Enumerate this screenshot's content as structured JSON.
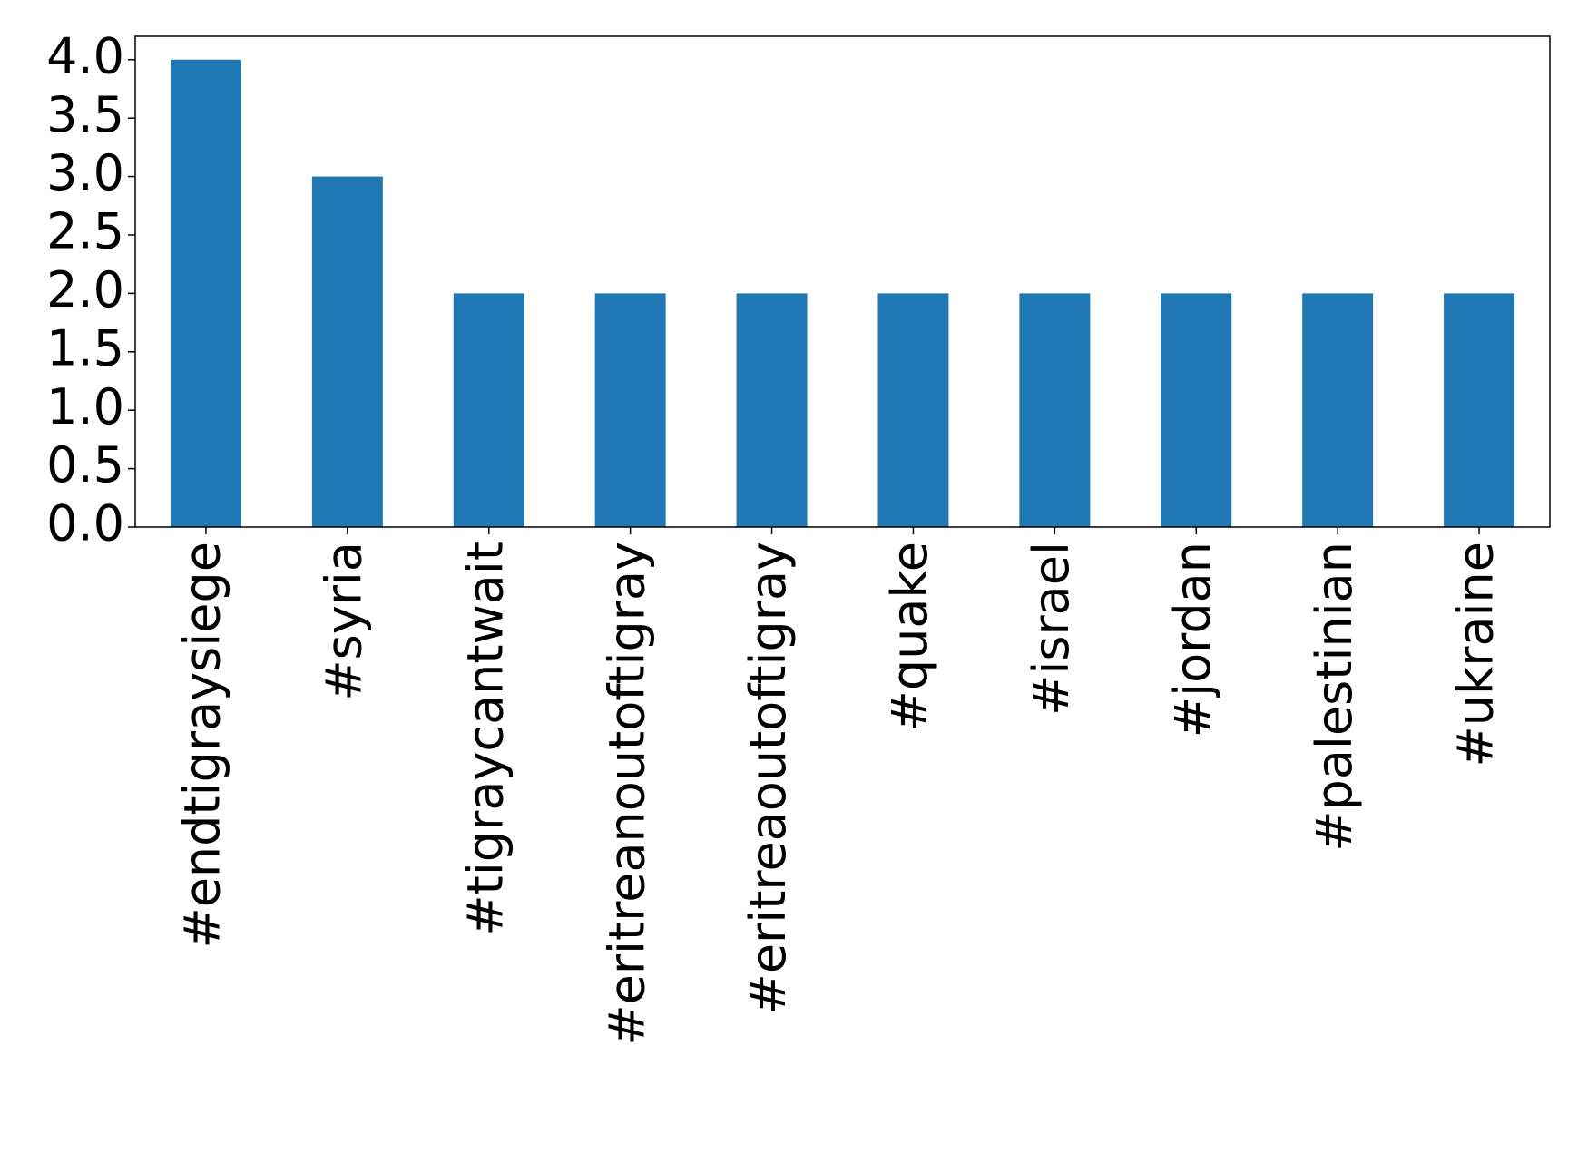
{
  "chart_data": {
    "type": "bar",
    "categories": [
      "#endtigraysiege",
      "#syria",
      "#tigraycantwait",
      "#eritreanoutoftigray",
      "#eritreaoutoftigray",
      "#quake",
      "#israel",
      "#jordan",
      "#palestinian",
      "#ukraine"
    ],
    "values": [
      4,
      3,
      2,
      2,
      2,
      2,
      2,
      2,
      2,
      2
    ],
    "color": "#1f77b4",
    "ylim": [
      0,
      4.2
    ],
    "yticks": [
      {
        "value": 0,
        "label": "0.0"
      },
      {
        "value": 0.5,
        "label": "0.5"
      },
      {
        "value": 1,
        "label": "1.0"
      },
      {
        "value": 1.5,
        "label": "1.5"
      },
      {
        "value": 2,
        "label": "2.0"
      },
      {
        "value": 2.5,
        "label": "2.5"
      },
      {
        "value": 3,
        "label": "3.0"
      },
      {
        "value": 3.5,
        "label": "3.5"
      },
      {
        "value": 4,
        "label": "4.0"
      }
    ],
    "grid": false
  }
}
